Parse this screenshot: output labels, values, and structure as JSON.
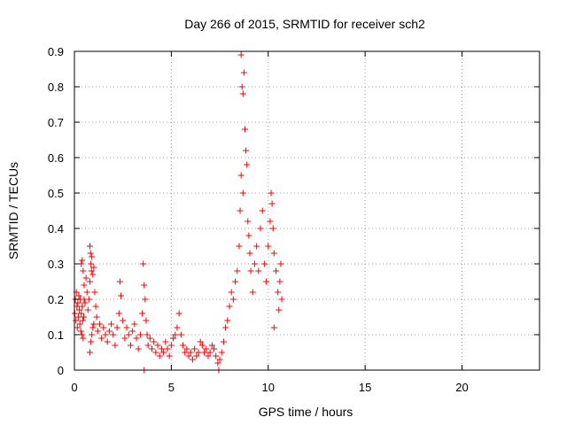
{
  "chart_data": {
    "type": "scatter",
    "title": "Day 266 of 2015, SRMTID for receiver sch2",
    "xlabel": "GPS time / hours",
    "ylabel": "SRMTID / TECUs",
    "xlim": [
      0,
      24
    ],
    "ylim": [
      0,
      0.9
    ],
    "xticks": [
      0,
      5,
      10,
      15,
      20
    ],
    "xtick_labels": [
      "0",
      "5",
      "10",
      "15",
      "20"
    ],
    "yticks": [
      0,
      0.1,
      0.2,
      0.3,
      0.4,
      0.5,
      0.6,
      0.7,
      0.8,
      0.9
    ],
    "ytick_labels": [
      "0",
      "0.1",
      "0.2",
      "0.3",
      "0.4",
      "0.5",
      "0.6",
      "0.7",
      "0.8",
      "0.9"
    ],
    "grid": true,
    "marker": "+",
    "color": "#ff0000",
    "series": [
      {
        "name": "sch2",
        "points": [
          [
            0.02,
            0.16
          ],
          [
            0.05,
            0.2
          ],
          [
            0.08,
            0.14
          ],
          [
            0.1,
            0.22
          ],
          [
            0.13,
            0.18
          ],
          [
            0.15,
            0.12
          ],
          [
            0.18,
            0.19
          ],
          [
            0.2,
            0.15
          ],
          [
            0.23,
            0.21
          ],
          [
            0.25,
            0.17
          ],
          [
            0.28,
            0.13
          ],
          [
            0.3,
            0.2
          ],
          [
            0.33,
            0.11
          ],
          [
            0.35,
            0.16
          ],
          [
            0.38,
            0.1
          ],
          [
            0.4,
            0.18
          ],
          [
            0.43,
            0.14
          ],
          [
            0.45,
            0.09
          ],
          [
            0.48,
            0.15
          ],
          [
            0.5,
            0.2
          ],
          [
            0.35,
            0.3
          ],
          [
            0.4,
            0.31
          ],
          [
            0.45,
            0.28
          ],
          [
            0.5,
            0.24
          ],
          [
            0.55,
            0.19
          ],
          [
            0.6,
            0.26
          ],
          [
            0.65,
            0.22
          ],
          [
            0.7,
            0.17
          ],
          [
            0.75,
            0.2
          ],
          [
            0.8,
            0.25
          ],
          [
            0.8,
            0.35
          ],
          [
            0.83,
            0.33
          ],
          [
            0.85,
            0.3
          ],
          [
            0.88,
            0.28
          ],
          [
            0.9,
            0.32
          ],
          [
            0.95,
            0.27
          ],
          [
            1.0,
            0.29
          ],
          [
            1.05,
            0.22
          ],
          [
            1.1,
            0.18
          ],
          [
            1.0,
            0.13
          ],
          [
            0.85,
            0.08
          ],
          [
            0.9,
            0.1
          ],
          [
            0.95,
            0.12
          ],
          [
            0.8,
            0.05
          ],
          [
            1.15,
            0.15
          ],
          [
            1.2,
            0.11
          ],
          [
            1.3,
            0.13
          ],
          [
            1.4,
            0.09
          ],
          [
            1.5,
            0.12
          ],
          [
            1.6,
            0.1
          ],
          [
            1.7,
            0.08
          ],
          [
            1.8,
            0.11
          ],
          [
            1.9,
            0.13
          ],
          [
            2.0,
            0.1
          ],
          [
            2.1,
            0.07
          ],
          [
            2.2,
            0.12
          ],
          [
            2.3,
            0.16
          ],
          [
            2.35,
            0.25
          ],
          [
            2.4,
            0.21
          ],
          [
            2.5,
            0.14
          ],
          [
            2.6,
            0.09
          ],
          [
            2.7,
            0.12
          ],
          [
            2.8,
            0.1
          ],
          [
            2.9,
            0.07
          ],
          [
            3.0,
            0.11
          ],
          [
            3.1,
            0.13
          ],
          [
            3.2,
            0.09
          ],
          [
            3.3,
            0.06
          ],
          [
            3.4,
            0.1
          ],
          [
            3.5,
            0.16
          ],
          [
            3.55,
            0.3
          ],
          [
            3.6,
            0.24
          ],
          [
            3.65,
            0.2
          ],
          [
            3.7,
            0.14
          ],
          [
            3.6,
            0.0
          ],
          [
            3.75,
            0.1
          ],
          [
            3.8,
            0.07
          ],
          [
            3.9,
            0.09
          ],
          [
            4.0,
            0.06
          ],
          [
            4.1,
            0.08
          ],
          [
            4.2,
            0.05
          ],
          [
            4.3,
            0.07
          ],
          [
            4.4,
            0.04
          ],
          [
            4.5,
            0.06
          ],
          [
            4.6,
            0.05
          ],
          [
            4.7,
            0.08
          ],
          [
            4.8,
            0.06
          ],
          [
            4.9,
            0.04
          ],
          [
            5.0,
            0.07
          ],
          [
            5.1,
            0.09
          ],
          [
            5.2,
            0.1
          ],
          [
            5.3,
            0.12
          ],
          [
            5.4,
            0.16
          ],
          [
            5.5,
            0.1
          ],
          [
            5.6,
            0.07
          ],
          [
            5.7,
            0.05
          ],
          [
            5.8,
            0.06
          ],
          [
            5.9,
            0.04
          ],
          [
            6.0,
            0.05
          ],
          [
            6.1,
            0.03
          ],
          [
            6.2,
            0.06
          ],
          [
            6.3,
            0.04
          ],
          [
            6.4,
            0.05
          ],
          [
            6.5,
            0.08
          ],
          [
            6.6,
            0.07
          ],
          [
            6.7,
            0.05
          ],
          [
            6.8,
            0.06
          ],
          [
            6.9,
            0.04
          ],
          [
            7.0,
            0.05
          ],
          [
            7.1,
            0.07
          ],
          [
            7.2,
            0.06
          ],
          [
            7.3,
            0.04
          ],
          [
            7.4,
            0.02
          ],
          [
            7.45,
            0.0
          ],
          [
            7.5,
            0.03
          ],
          [
            7.6,
            0.05
          ],
          [
            7.7,
            0.08
          ],
          [
            7.8,
            0.12
          ],
          [
            7.9,
            0.14
          ],
          [
            8.0,
            0.18
          ],
          [
            8.1,
            0.22
          ],
          [
            8.2,
            0.2
          ],
          [
            8.3,
            0.25
          ],
          [
            8.4,
            0.28
          ],
          [
            8.5,
            0.35
          ],
          [
            8.55,
            0.45
          ],
          [
            8.6,
            0.89
          ],
          [
            8.65,
            0.8
          ],
          [
            8.7,
            0.78
          ],
          [
            8.75,
            0.84
          ],
          [
            8.6,
            0.55
          ],
          [
            8.7,
            0.5
          ],
          [
            8.8,
            0.68
          ],
          [
            8.85,
            0.62
          ],
          [
            8.9,
            0.58
          ],
          [
            8.95,
            0.42
          ],
          [
            9.0,
            0.38
          ],
          [
            9.05,
            0.33
          ],
          [
            9.1,
            0.28
          ],
          [
            9.2,
            0.22
          ],
          [
            9.3,
            0.3
          ],
          [
            9.4,
            0.35
          ],
          [
            9.5,
            0.28
          ],
          [
            9.6,
            0.4
          ],
          [
            9.7,
            0.45
          ],
          [
            9.8,
            0.3
          ],
          [
            9.9,
            0.25
          ],
          [
            10.0,
            0.35
          ],
          [
            10.1,
            0.42
          ],
          [
            10.15,
            0.5
          ],
          [
            10.2,
            0.47
          ],
          [
            10.25,
            0.4
          ],
          [
            10.3,
            0.33
          ],
          [
            10.4,
            0.28
          ],
          [
            10.5,
            0.22
          ],
          [
            10.55,
            0.17
          ],
          [
            10.6,
            0.25
          ],
          [
            10.65,
            0.3
          ],
          [
            10.7,
            0.2
          ],
          [
            10.3,
            0.12
          ]
        ]
      }
    ]
  }
}
